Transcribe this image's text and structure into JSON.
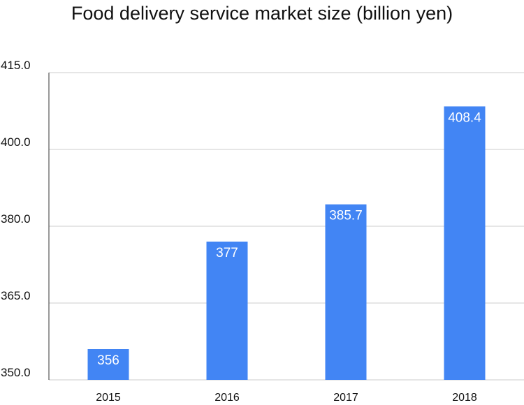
{
  "chart_data": {
    "type": "bar",
    "title": "Food delivery service market size (billion yen)",
    "xlabel": "",
    "ylabel": "",
    "categories": [
      "2015",
      "2016",
      "2017",
      "2018"
    ],
    "values": [
      356,
      377,
      385.7,
      408.4
    ],
    "data_labels": [
      "356",
      "377",
      "385.7",
      "408.4"
    ],
    "y_ticks": [
      350.0,
      365.0,
      380.0,
      400.0,
      415.0
    ],
    "y_tick_labels": [
      "350.0",
      "365.0",
      "380.0",
      "400.0",
      "415.0"
    ],
    "ylim": [
      350,
      415
    ],
    "grid": true,
    "legend": "none",
    "bar_color": "#4285f4",
    "gridline_color": "#cccccc"
  }
}
